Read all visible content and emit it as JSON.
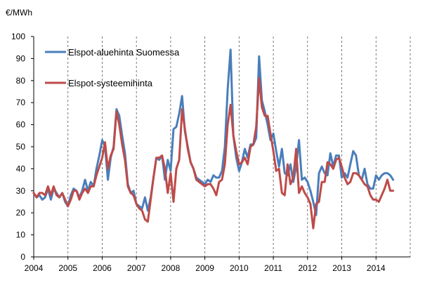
{
  "chart_data": {
    "type": "line",
    "unit_label": "€/MWh",
    "ylim": [
      0,
      100
    ],
    "y_ticks": [
      0,
      10,
      20,
      30,
      40,
      50,
      60,
      70,
      80,
      90,
      100
    ],
    "x_ticks": [
      "2004",
      "2005",
      "2006",
      "2007",
      "2008",
      "2009",
      "2010",
      "2011",
      "2012",
      "2013",
      "2014"
    ],
    "x_start_year": 2004,
    "months_per_point": 1,
    "grid": "dashed vertical lines at year boundaries",
    "legend_position": "top-left",
    "series": [
      {
        "name": "Elspot-aluehinta Suomessa",
        "color": "#4a7ebb",
        "values": [
          29,
          27,
          28,
          26,
          27,
          31,
          26,
          31,
          29,
          27,
          29,
          25,
          23,
          28,
          31,
          30,
          27,
          30,
          35,
          30,
          34,
          32,
          40,
          46,
          53,
          50,
          35,
          45,
          50,
          67,
          64,
          55,
          47,
          33,
          29,
          30,
          24,
          23,
          22,
          27,
          21,
          27,
          36,
          45,
          44,
          46,
          35,
          44,
          39,
          58,
          59,
          65,
          73,
          57,
          50,
          43,
          40,
          36,
          35,
          34,
          33,
          35,
          34,
          37,
          36,
          36,
          39,
          50,
          76,
          94,
          55,
          45,
          39,
          43,
          49,
          45,
          51,
          51,
          54,
          91,
          71,
          66,
          60,
          53,
          56,
          48,
          41,
          49,
          38,
          37,
          42,
          34,
          41,
          53,
          35,
          36,
          34,
          30,
          25,
          19,
          38,
          41,
          38,
          37,
          47,
          41,
          46,
          46,
          36,
          38,
          36,
          42,
          48,
          46,
          37,
          35,
          40,
          33,
          31,
          31,
          37,
          35,
          37,
          38,
          38,
          37,
          35
        ]
      },
      {
        "name": "Elspot-systeemihinta",
        "color": "#be4b48",
        "values": [
          29,
          27,
          29,
          29,
          28,
          32,
          28,
          32,
          28,
          27,
          29,
          26,
          23,
          26,
          30,
          30,
          26,
          29,
          31,
          29,
          32,
          32,
          37,
          41,
          45,
          52,
          40,
          46,
          49,
          66,
          60,
          51,
          44,
          32,
          29,
          28,
          24,
          22,
          21,
          17,
          16,
          26,
          36,
          45,
          45,
          46,
          40,
          29,
          38,
          25,
          40,
          44,
          67,
          58,
          49,
          43,
          40,
          35,
          34,
          33,
          32,
          33,
          33,
          31,
          28,
          34,
          35,
          42,
          60,
          69,
          55,
          48,
          42,
          43,
          45,
          42,
          50,
          51,
          59,
          81,
          68,
          64,
          64,
          56,
          48,
          39,
          40,
          29,
          28,
          42,
          33,
          36,
          49,
          29,
          32,
          29,
          27,
          24,
          13,
          24,
          25,
          34,
          34,
          43,
          42,
          40,
          44,
          45,
          41,
          36,
          33,
          34,
          38,
          38,
          37,
          35,
          33,
          32,
          28,
          26,
          26,
          25,
          28,
          31,
          35,
          30,
          30
        ]
      }
    ]
  }
}
